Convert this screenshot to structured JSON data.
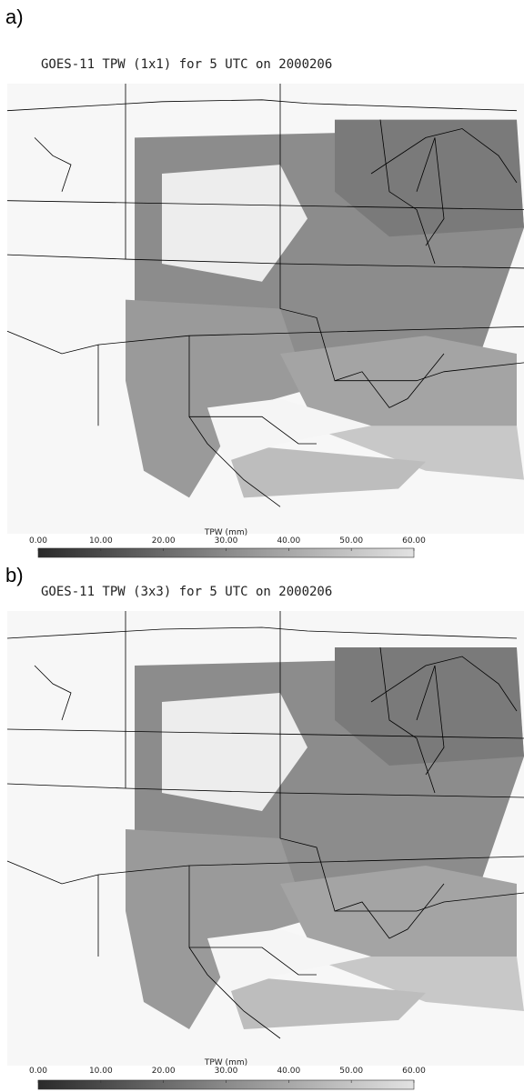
{
  "panels": [
    {
      "label": "a)",
      "title": "GOES-11 TPW (1x1) for 5 UTC on 2000206",
      "colorbar": {
        "label": "TPW (mm)",
        "range": [
          0,
          60
        ],
        "ticks": [
          {
            "value": 0,
            "label": "0.00"
          },
          {
            "value": 10,
            "label": "10.00"
          },
          {
            "value": 20,
            "label": "20.00"
          },
          {
            "value": 30,
            "label": "30.00"
          },
          {
            "value": 40,
            "label": "40.00"
          },
          {
            "value": 50,
            "label": "50.00"
          },
          {
            "value": 60,
            "label": "60.00"
          }
        ]
      }
    },
    {
      "label": "b)",
      "title": "GOES-11 TPW (3x3) for 5 UTC on 2000206",
      "colorbar": {
        "label": "TPW (mm)",
        "range": [
          0,
          60
        ],
        "ticks": [
          {
            "value": 0,
            "label": "0.00"
          },
          {
            "value": 10,
            "label": "10.00"
          },
          {
            "value": 20,
            "label": "20.00"
          },
          {
            "value": 30,
            "label": "30.00"
          },
          {
            "value": 40,
            "label": "40.00"
          },
          {
            "value": 50,
            "label": "50.00"
          },
          {
            "value": 60,
            "label": "60.00"
          }
        ]
      }
    }
  ]
}
